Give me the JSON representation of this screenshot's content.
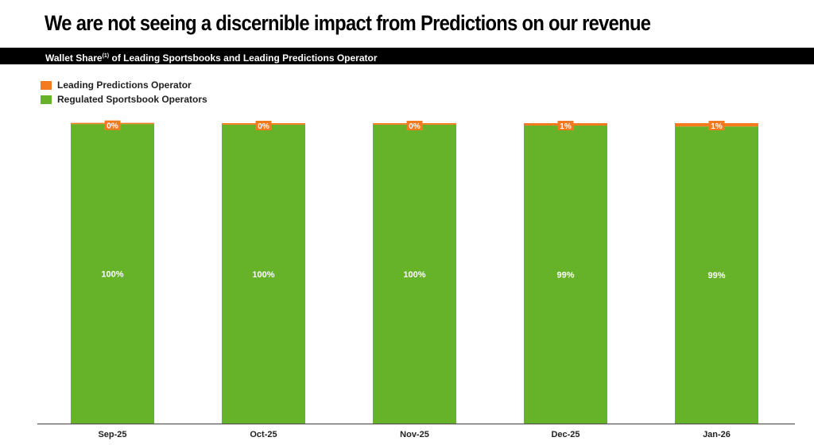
{
  "header": {
    "title": "We are not seeing a discernible impact from Predictions on our revenue"
  },
  "chart_data": {
    "type": "bar",
    "stacked": true,
    "title": "Wallet Share",
    "title_footnote": "(1)",
    "title_rest": "of Leading Sportsbooks and Leading Predictions Operator",
    "categories": [
      "Sep-25",
      "Oct-25",
      "Nov-25",
      "Dec-25",
      "Jan-26"
    ],
    "series": [
      {
        "name": "Regulated Sportsbook Operators",
        "color": "#66b32a",
        "values": [
          99.7,
          99.5,
          99.5,
          99.2,
          98.9
        ],
        "labels": [
          "100%",
          "100%",
          "100%",
          "99%",
          "99%"
        ]
      },
      {
        "name": "Leading Predictions Operator",
        "color": "#f47a20",
        "values": [
          0.3,
          0.5,
          0.5,
          0.8,
          1.1
        ],
        "labels": [
          "0%",
          "0%",
          "0%",
          "1%",
          "1%"
        ]
      }
    ],
    "ylim": [
      0,
      100
    ],
    "grid": false,
    "legend": "top-left"
  }
}
